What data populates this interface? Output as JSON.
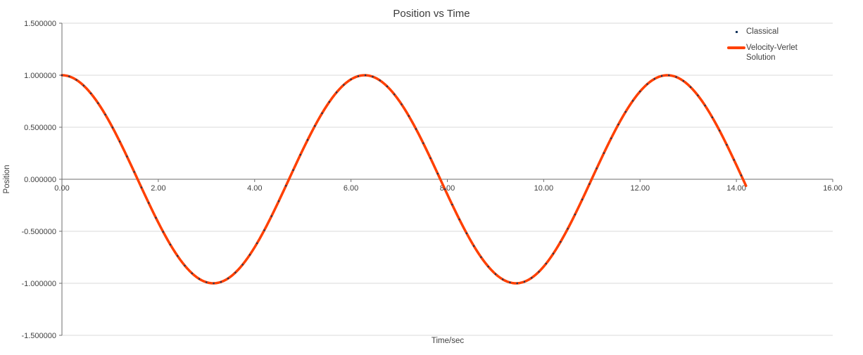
{
  "accent_colors": {
    "classical_marker": "#17375E",
    "verlet_line": "#FF4000",
    "gridline": "#D9D9D9",
    "axis_line": "#6E6E6E",
    "text": "#404040"
  },
  "chart_data": {
    "type": "line",
    "title": "Position vs Time",
    "xlabel": "Time/sec",
    "ylabel": "Position",
    "xlim": [
      0,
      16
    ],
    "ylim": [
      -1.5,
      1.5
    ],
    "grid": "horizontal",
    "legend_position": "top-right",
    "x_ticks": [
      {
        "value": 0,
        "label": "0.00"
      },
      {
        "value": 2,
        "label": "2.00"
      },
      {
        "value": 4,
        "label": "4.00"
      },
      {
        "value": 6,
        "label": "6.00"
      },
      {
        "value": 8,
        "label": "8.00"
      },
      {
        "value": 10,
        "label": "10.00"
      },
      {
        "value": 12,
        "label": "12.00"
      },
      {
        "value": 14,
        "label": "14.00"
      },
      {
        "value": 16,
        "label": "16.00"
      }
    ],
    "y_ticks": [
      {
        "value": 1.5,
        "label": "1.500000"
      },
      {
        "value": 1.0,
        "label": "1.000000"
      },
      {
        "value": 0.5,
        "label": "0.500000"
      },
      {
        "value": 0.0,
        "label": "0.000000"
      },
      {
        "value": -0.5,
        "label": "-0.500000"
      },
      {
        "value": -1.0,
        "label": "-1.000000"
      },
      {
        "value": -1.5,
        "label": "-1.500000"
      }
    ],
    "series": [
      {
        "name": "Classical",
        "style": "markers",
        "color": "#17375E",
        "function": "cos",
        "amplitude": 1.0,
        "t_start": 0,
        "t_end": 14.2,
        "sample_step": 0.15,
        "marker_size": 2.2
      },
      {
        "name": "Velocity-Verlet Solution",
        "style": "line",
        "color": "#FF4000",
        "line_width": 3.5,
        "function": "cos",
        "amplitude": 1.0,
        "t_start": 0,
        "t_end": 14.2,
        "sample_step": 0.05
      }
    ],
    "key_points": [
      {
        "t": 0.0,
        "position": 1.0
      },
      {
        "t": 3.14,
        "position": -1.0
      },
      {
        "t": 6.28,
        "position": 1.0
      },
      {
        "t": 9.42,
        "position": -1.0
      },
      {
        "t": 12.57,
        "position": 1.0
      },
      {
        "t": 14.2,
        "position": -0.06
      }
    ]
  }
}
